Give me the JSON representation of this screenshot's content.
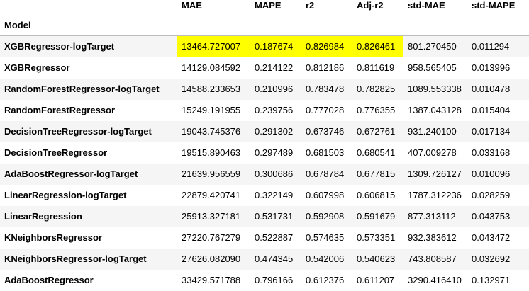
{
  "table": {
    "index_name": "Model",
    "columns": [
      "MAE",
      "MAPE",
      "r2",
      "Adj-r2",
      "std-MAE",
      "std-MAPE"
    ],
    "highlight_color": "#ffff00",
    "highlighted_row": 0,
    "highlighted_cols": [
      0,
      1,
      2,
      3
    ],
    "rows": [
      {
        "model": "XGBRegressor-logTarget",
        "values": [
          "13464.727007",
          "0.187674",
          "0.826984",
          "0.826461",
          "801.270450",
          "0.011294"
        ]
      },
      {
        "model": "XGBRegressor",
        "values": [
          "14129.084592",
          "0.214122",
          "0.812186",
          "0.811619",
          "958.565405",
          "0.013996"
        ]
      },
      {
        "model": "RandomForestRegressor-logTarget",
        "values": [
          "14588.233653",
          "0.210996",
          "0.783478",
          "0.782825",
          "1089.553338",
          "0.010478"
        ]
      },
      {
        "model": "RandomForestRegressor",
        "values": [
          "15249.191955",
          "0.239756",
          "0.777028",
          "0.776355",
          "1387.043128",
          "0.015404"
        ]
      },
      {
        "model": "DecisionTreeRegressor-logTarget",
        "values": [
          "19043.745376",
          "0.291302",
          "0.673746",
          "0.672761",
          "931.240100",
          "0.017134"
        ]
      },
      {
        "model": "DecisionTreeRegressor",
        "values": [
          "19515.890463",
          "0.297489",
          "0.681503",
          "0.680541",
          "407.009278",
          "0.033168"
        ]
      },
      {
        "model": "AdaBoostRegressor-logTarget",
        "values": [
          "21639.956559",
          "0.300686",
          "0.678784",
          "0.677815",
          "1309.726127",
          "0.010096"
        ]
      },
      {
        "model": "LinearRegression-logTarget",
        "values": [
          "22879.420741",
          "0.322149",
          "0.607998",
          "0.606815",
          "1787.312236",
          "0.028259"
        ]
      },
      {
        "model": "LinearRegression",
        "values": [
          "25913.327181",
          "0.531731",
          "0.592908",
          "0.591679",
          "877.313112",
          "0.043753"
        ]
      },
      {
        "model": "KNeighborsRegressor",
        "values": [
          "27220.767279",
          "0.522887",
          "0.574635",
          "0.573351",
          "932.383612",
          "0.043472"
        ]
      },
      {
        "model": "KNeighborsRegressor-logTarget",
        "values": [
          "27626.082090",
          "0.474345",
          "0.542006",
          "0.540623",
          "743.808587",
          "0.032692"
        ]
      },
      {
        "model": "AdaBoostRegressor",
        "values": [
          "33429.571788",
          "0.796166",
          "0.612376",
          "0.611207",
          "3290.416410",
          "0.132971"
        ]
      }
    ]
  }
}
